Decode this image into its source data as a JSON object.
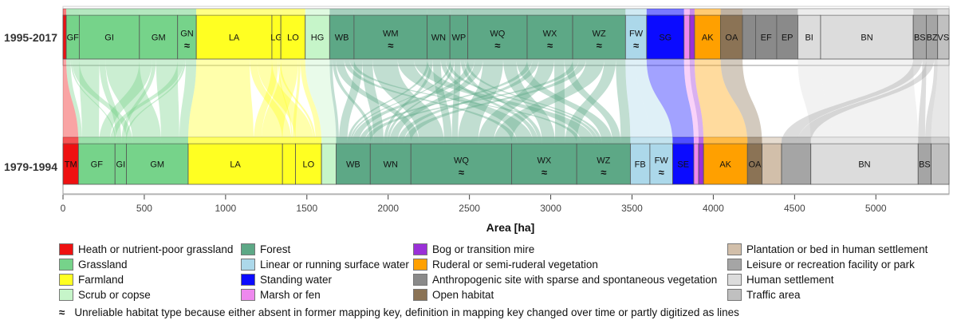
{
  "chart_data": {
    "type": "alluvial",
    "xlabel": "Area [ha]",
    "xlim": [
      0,
      5450
    ],
    "xticks": [
      0,
      500,
      1000,
      1500,
      2000,
      2500,
      3000,
      3500,
      4000,
      4500,
      5000
    ],
    "periods": [
      "1995-2017",
      "1979-1994"
    ],
    "colors": {
      "heath": "#ee1111",
      "grassland": "#76d38a",
      "farmland": "#ffff22",
      "scrub": "#c6f5c9",
      "forest": "#5da886",
      "linear_water": "#acd8ea",
      "standing_water": "#0b0bff",
      "marsh": "#ee88ee",
      "bog": "#9a30d8",
      "ruderal": "#ffa000",
      "anthropogenic": "#8a8a8a",
      "open_habitat": "#8b7355",
      "plantation": "#d2bfaa",
      "leisure": "#a5a5a5",
      "settlement": "#dcdcdc",
      "traffic": "#c0c0c0"
    },
    "strata_top": [
      {
        "code": "",
        "category": "heath",
        "start": 0,
        "end": 20,
        "unreliable": false
      },
      {
        "code": "GF",
        "category": "grassland",
        "start": 20,
        "end": 100,
        "unreliable": false
      },
      {
        "code": "GI",
        "category": "grassland",
        "start": 100,
        "end": 470,
        "unreliable": false
      },
      {
        "code": "GM",
        "category": "grassland",
        "start": 470,
        "end": 705,
        "unreliable": false
      },
      {
        "code": "GN",
        "category": "grassland",
        "start": 705,
        "end": 820,
        "unreliable": true
      },
      {
        "code": "LA",
        "category": "farmland",
        "start": 820,
        "end": 1285,
        "unreliable": false
      },
      {
        "code": "LG",
        "category": "farmland",
        "start": 1285,
        "end": 1340,
        "unreliable": false
      },
      {
        "code": "LO",
        "category": "farmland",
        "start": 1340,
        "end": 1490,
        "unreliable": false
      },
      {
        "code": "HG",
        "category": "scrub",
        "start": 1490,
        "end": 1640,
        "unreliable": false
      },
      {
        "code": "WB",
        "category": "forest",
        "start": 1640,
        "end": 1790,
        "unreliable": false
      },
      {
        "code": "WM",
        "category": "forest",
        "start": 1790,
        "end": 2240,
        "unreliable": true
      },
      {
        "code": "WN",
        "category": "forest",
        "start": 2240,
        "end": 2380,
        "unreliable": false
      },
      {
        "code": "WP",
        "category": "forest",
        "start": 2380,
        "end": 2490,
        "unreliable": false
      },
      {
        "code": "WQ",
        "category": "forest",
        "start": 2490,
        "end": 2855,
        "unreliable": true
      },
      {
        "code": "WX",
        "category": "forest",
        "start": 2855,
        "end": 3135,
        "unreliable": true
      },
      {
        "code": "WZ",
        "category": "forest",
        "start": 3135,
        "end": 3460,
        "unreliable": true
      },
      {
        "code": "FW",
        "category": "linear_water",
        "start": 3460,
        "end": 3590,
        "unreliable": true
      },
      {
        "code": "SG",
        "category": "standing_water",
        "start": 3590,
        "end": 3820,
        "unreliable": false
      },
      {
        "code": "",
        "category": "marsh",
        "start": 3820,
        "end": 3855,
        "unreliable": false
      },
      {
        "code": "",
        "category": "bog",
        "start": 3855,
        "end": 3885,
        "unreliable": false
      },
      {
        "code": "AK",
        "category": "ruderal",
        "start": 3885,
        "end": 4045,
        "unreliable": false
      },
      {
        "code": "OA",
        "category": "open_habitat",
        "start": 4045,
        "end": 4180,
        "unreliable": false
      },
      {
        "code": "",
        "category": "anthropogenic",
        "start": 4180,
        "end": 4260,
        "unreliable": false
      },
      {
        "code": "EF",
        "category": "anthropogenic",
        "start": 4260,
        "end": 4390,
        "unreliable": false
      },
      {
        "code": "EP",
        "category": "anthropogenic",
        "start": 4390,
        "end": 4520,
        "unreliable": false
      },
      {
        "code": "BI",
        "category": "settlement",
        "start": 4520,
        "end": 4660,
        "unreliable": false
      },
      {
        "code": "BN",
        "category": "settlement",
        "start": 4660,
        "end": 5230,
        "unreliable": false
      },
      {
        "code": "BS",
        "category": "leisure",
        "start": 5230,
        "end": 5310,
        "unreliable": false
      },
      {
        "code": "BZ",
        "category": "leisure",
        "start": 5310,
        "end": 5380,
        "unreliable": false
      },
      {
        "code": "VS",
        "category": "traffic",
        "start": 5380,
        "end": 5450,
        "unreliable": false
      }
    ],
    "strata_bottom": [
      {
        "code": "TM",
        "category": "heath",
        "start": 0,
        "end": 95,
        "unreliable": false
      },
      {
        "code": "GF",
        "category": "grassland",
        "start": 95,
        "end": 320,
        "unreliable": false
      },
      {
        "code": "GI",
        "category": "grassland",
        "start": 320,
        "end": 390,
        "unreliable": false
      },
      {
        "code": "GM",
        "category": "grassland",
        "start": 390,
        "end": 770,
        "unreliable": false
      },
      {
        "code": "LA",
        "category": "farmland",
        "start": 770,
        "end": 1350,
        "unreliable": false
      },
      {
        "code": "",
        "category": "farmland",
        "start": 1350,
        "end": 1430,
        "unreliable": false
      },
      {
        "code": "LO",
        "category": "farmland",
        "start": 1430,
        "end": 1590,
        "unreliable": false
      },
      {
        "code": "",
        "category": "scrub",
        "start": 1590,
        "end": 1680,
        "unreliable": false
      },
      {
        "code": "WB",
        "category": "forest",
        "start": 1680,
        "end": 1890,
        "unreliable": false
      },
      {
        "code": "WN",
        "category": "forest",
        "start": 1890,
        "end": 2140,
        "unreliable": false
      },
      {
        "code": "WQ",
        "category": "forest",
        "start": 2140,
        "end": 2760,
        "unreliable": true
      },
      {
        "code": "WX",
        "category": "forest",
        "start": 2760,
        "end": 3160,
        "unreliable": true
      },
      {
        "code": "WZ",
        "category": "forest",
        "start": 3160,
        "end": 3490,
        "unreliable": true
      },
      {
        "code": "FB",
        "category": "linear_water",
        "start": 3490,
        "end": 3610,
        "unreliable": false
      },
      {
        "code": "FW",
        "category": "linear_water",
        "start": 3610,
        "end": 3750,
        "unreliable": true
      },
      {
        "code": "SE",
        "category": "standing_water",
        "start": 3750,
        "end": 3880,
        "unreliable": false
      },
      {
        "code": "",
        "category": "marsh",
        "start": 3880,
        "end": 3910,
        "unreliable": false
      },
      {
        "code": "",
        "category": "bog",
        "start": 3910,
        "end": 3940,
        "unreliable": false
      },
      {
        "code": "AK",
        "category": "ruderal",
        "start": 3940,
        "end": 4210,
        "unreliable": false
      },
      {
        "code": "OA",
        "category": "open_habitat",
        "start": 4210,
        "end": 4300,
        "unreliable": false
      },
      {
        "code": "",
        "category": "plantation",
        "start": 4300,
        "end": 4420,
        "unreliable": false
      },
      {
        "code": "",
        "category": "leisure",
        "start": 4420,
        "end": 4600,
        "unreliable": false
      },
      {
        "code": "BN",
        "category": "settlement",
        "start": 4600,
        "end": 5260,
        "unreliable": false
      },
      {
        "code": "BS",
        "category": "leisure",
        "start": 5260,
        "end": 5340,
        "unreliable": false
      },
      {
        "code": "",
        "category": "traffic",
        "start": 5340,
        "end": 5450,
        "unreliable": false
      }
    ],
    "legend": [
      {
        "key": "heath",
        "label": "Heath or nutrient-poor grassland"
      },
      {
        "key": "grassland",
        "label": "Grassland"
      },
      {
        "key": "farmland",
        "label": "Farmland"
      },
      {
        "key": "scrub",
        "label": "Scrub or copse"
      },
      {
        "key": "forest",
        "label": "Forest"
      },
      {
        "key": "linear_water",
        "label": "Linear or running surface water"
      },
      {
        "key": "standing_water",
        "label": "Standing water"
      },
      {
        "key": "marsh",
        "label": "Marsh or fen"
      },
      {
        "key": "bog",
        "label": "Bog or transition mire"
      },
      {
        "key": "ruderal",
        "label": "Ruderal or semi-ruderal vegetation"
      },
      {
        "key": "anthropogenic",
        "label": "Anthropogenic site with sparse and spontaneous vegetation"
      },
      {
        "key": "open_habitat",
        "label": "Open habitat"
      },
      {
        "key": "plantation",
        "label": "Plantation or bed in human settlement"
      },
      {
        "key": "leisure",
        "label": "Leisure or recreation facility or park"
      },
      {
        "key": "settlement",
        "label": "Human settlement"
      },
      {
        "key": "traffic",
        "label": "Traffic area"
      }
    ],
    "unreliable_symbol": "≈",
    "note": "Unreliable habitat type because either absent in former mapping key, definition in mapping key changed over time or partly digitized as lines"
  }
}
